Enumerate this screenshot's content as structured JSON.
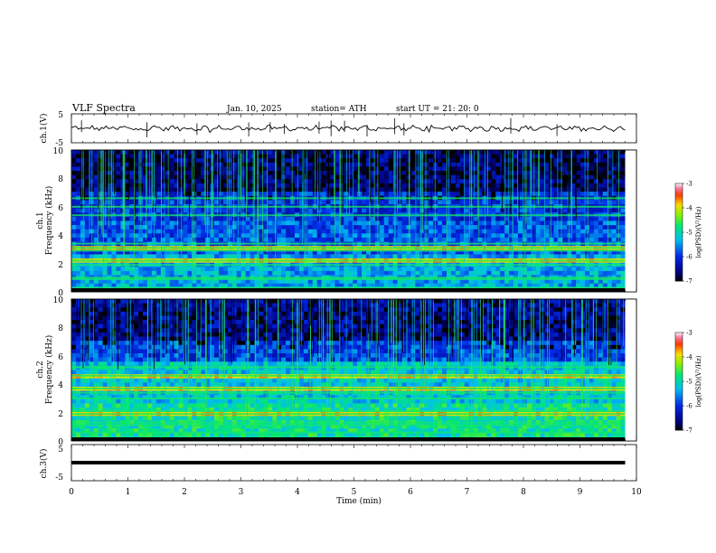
{
  "header": {
    "title": "VLF  Spectra",
    "date": "Jan. 10, 2025",
    "station": "station= ATH",
    "start": "start  UT  =   21: 20: 0"
  },
  "chart_data": [
    {
      "type": "line",
      "ylabel": "ch.1(V)",
      "ylim": [
        -5,
        5
      ],
      "yticks": [
        "5",
        "-5"
      ],
      "xlim": [
        0,
        10
      ],
      "description_series": "waveform"
    },
    {
      "type": "heatmap",
      "ylabel_line1": "ch.1",
      "ylabel_line2": "Frequency  (kHz)",
      "ylim": [
        0,
        10
      ],
      "yticks": [
        "10",
        "8",
        "6",
        "4",
        "2",
        "0"
      ],
      "xlim": [
        0,
        10
      ],
      "colorbar": {
        "min": -7,
        "max": -3,
        "ticks": [
          "-3",
          "-4",
          "-5",
          "-6",
          "-7"
        ],
        "label": "log(PSD)(V²/Hz)"
      },
      "bands_khz": [
        0.3,
        0.9,
        1.0,
        1.9,
        2.2,
        2.9,
        3.1,
        3.4,
        5.4,
        6.0,
        6.6
      ],
      "strong_bands_khz": [
        2.3,
        3.2
      ]
    },
    {
      "type": "heatmap",
      "ylabel_line1": "ch.2",
      "ylabel_line2": "Frequency  (kHz)",
      "ylim": [
        0,
        10
      ],
      "yticks": [
        "10",
        "8",
        "6",
        "4",
        "2",
        "0"
      ],
      "xlim": [
        0,
        10
      ],
      "colorbar": {
        "min": -7,
        "max": -3,
        "ticks": [
          "-3",
          "-4",
          "-5",
          "-6",
          "-7"
        ],
        "label": "log(PSD)(V²/Hz)"
      },
      "bands_khz": [
        0.6,
        1.1,
        1.3,
        1.9,
        2.1,
        3.0,
        3.4,
        3.7,
        4.6,
        5.2
      ],
      "strong_bands_khz": [
        2.0,
        3.6,
        4.5
      ]
    },
    {
      "type": "line",
      "ylabel": "ch.3(V)",
      "ylim": [
        -5,
        5
      ],
      "yticks": [
        "5",
        "-5"
      ],
      "xlim": [
        0,
        10
      ],
      "xticks": [
        "0",
        "1",
        "2",
        "3",
        "4",
        "5",
        "6",
        "7",
        "8",
        "9",
        "10"
      ],
      "xlabel": "Time  (min)",
      "values": [
        [
          0,
          0
        ],
        [
          9.8,
          0
        ]
      ]
    }
  ],
  "colors": {
    "ink": "#000000",
    "paper": "#ffffff"
  }
}
